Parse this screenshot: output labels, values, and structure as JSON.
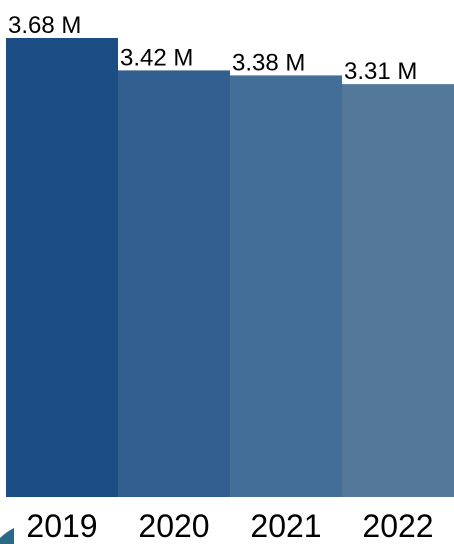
{
  "chart_data": {
    "type": "bar",
    "categories": [
      "2019",
      "2020",
      "2021",
      "2022"
    ],
    "values": [
      3.68,
      3.42,
      3.38,
      3.31
    ],
    "value_labels": [
      "3.68 M",
      "3.42 M",
      "3.38 M",
      "3.31 M"
    ],
    "title": "",
    "xlabel": "",
    "ylabel": "",
    "ylim": [
      0,
      3.68
    ],
    "grid": false,
    "legend": "none",
    "colors": [
      "#1c4d84",
      "#325f8f",
      "#436e98",
      "#54789a"
    ]
  }
}
